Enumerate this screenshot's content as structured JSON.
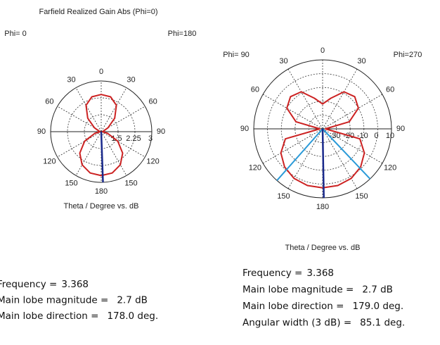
{
  "chart_data": [
    {
      "type": "polar",
      "title": "Farfield Realized Gain Abs (Phi=0)",
      "phi_labels": [
        "Phi= 0",
        "Phi=180"
      ],
      "axis_label": "Theta / Degree vs. dB",
      "rlim": [
        0.75,
        3
      ],
      "rticks": [
        1.5,
        2.25,
        3
      ],
      "angle_ticks": [
        0,
        30,
        60,
        90,
        120,
        150,
        180,
        {
          "value": 210,
          "label": "150"
        },
        {
          "value": 240,
          "label": "120"
        },
        {
          "value": 270,
          "label": "90"
        },
        {
          "value": 300,
          "label": "60"
        },
        {
          "value": 330,
          "label": "30"
        }
      ],
      "theta": [
        0,
        15,
        30,
        45,
        60,
        75,
        90,
        105,
        120,
        135,
        150,
        165,
        180,
        195,
        210,
        225,
        240,
        255,
        270,
        285,
        300,
        315,
        330,
        345
      ],
      "values": [
        2.4,
        2.35,
        2.1,
        1.6,
        1.1,
        0.85,
        0.8,
        1.05,
        1.6,
        2.1,
        2.45,
        2.65,
        2.7,
        2.65,
        2.45,
        2.1,
        1.6,
        1.05,
        0.8,
        0.85,
        1.1,
        1.6,
        2.1,
        2.35
      ],
      "color": "#cc2222",
      "direction_color": "#1a2a8c",
      "info": {
        "frequency": {
          "label": "Frequency =",
          "value": 3.368
        },
        "magnitude": {
          "label": "Main lobe magnitude =",
          "value": 2.7,
          "value_label": "2.7 dB"
        },
        "direction": {
          "label": "Main lobe direction =",
          "value": 178,
          "value_label": "178.0 deg."
        }
      }
    },
    {
      "type": "polar",
      "phi_labels": [
        "Phi= 90",
        "Phi=270"
      ],
      "axis_label": "Theta / Degree vs. dB",
      "rlim": [
        -40,
        10
      ],
      "rticks": [
        -30,
        -20,
        -10,
        0,
        10
      ],
      "angle_ticks": [
        0,
        30,
        60,
        90,
        120,
        150,
        180,
        {
          "value": 210,
          "label": "150"
        },
        {
          "value": 240,
          "label": "120"
        },
        {
          "value": 270,
          "label": "90"
        },
        {
          "value": 300,
          "label": "60"
        },
        {
          "value": 330,
          "label": "30"
        }
      ],
      "theta": [
        0,
        15,
        30,
        45,
        60,
        75,
        90,
        105,
        120,
        135,
        150,
        165,
        180,
        195,
        210,
        225,
        240,
        255,
        270,
        285,
        300,
        315,
        330,
        345
      ],
      "values": [
        -22,
        -17,
        -9,
        -7,
        -10,
        -20,
        -38,
        -12,
        -5,
        -1,
        1.5,
        2.5,
        2.7,
        2.5,
        1.5,
        -1,
        -5,
        -12,
        -38,
        -20,
        -10,
        -7,
        -9,
        -17
      ],
      "color": "#cc2222",
      "direction_color": "#1a2a8c",
      "beam_color": "#2a9ad8",
      "info": {
        "frequency": {
          "label": "Frequency =",
          "value": 3.368
        },
        "magnitude": {
          "label": "Main lobe magnitude =",
          "value": 2.7,
          "value_label": "2.7 dB"
        },
        "direction": {
          "label": "Main lobe direction =",
          "value": 179,
          "value_label": "179.0 deg."
        },
        "angular_width": {
          "label": "Angular width (3 dB) =",
          "value": 85.1,
          "value_label": "85.1 deg."
        }
      }
    }
  ]
}
